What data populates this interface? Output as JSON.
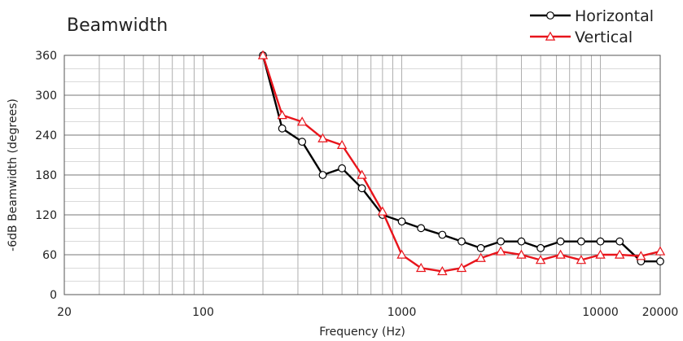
{
  "chart_data": {
    "type": "line",
    "title": "Beamwidth",
    "xlabel": "Frequency (Hz)",
    "ylabel": "-6dB Beamwidth (degrees)",
    "x_scale": "log",
    "xlim": [
      20,
      20000
    ],
    "ylim": [
      0,
      360
    ],
    "x_ticks": [
      20,
      100,
      1000,
      10000,
      20000
    ],
    "x_tick_labels": [
      "20",
      "100",
      "1000",
      "10000",
      "20000"
    ],
    "y_ticks": [
      0,
      60,
      120,
      180,
      240,
      300,
      360
    ],
    "y_tick_labels": [
      "0",
      "60",
      "120",
      "180",
      "240",
      "300",
      "360"
    ],
    "grid": true,
    "legend_position": "top-right",
    "x": [
      200,
      250,
      315,
      400,
      500,
      630,
      800,
      1000,
      1250,
      1600,
      2000,
      2500,
      3150,
      4000,
      5000,
      6300,
      8000,
      10000,
      12500,
      16000,
      20000
    ],
    "series": [
      {
        "name": "Horizontal",
        "color": "#000000",
        "marker": "circle",
        "values": [
          360,
          250,
          230,
          180,
          190,
          160,
          120,
          110,
          100,
          90,
          80,
          70,
          80,
          80,
          70,
          80,
          80,
          80,
          80,
          50,
          50
        ]
      },
      {
        "name": "Vertical",
        "color": "#e8141b",
        "marker": "triangle",
        "values": [
          360,
          270,
          260,
          235,
          225,
          180,
          125,
          60,
          40,
          35,
          40,
          55,
          65,
          60,
          52,
          60,
          52,
          60,
          60,
          58,
          65
        ]
      }
    ]
  }
}
